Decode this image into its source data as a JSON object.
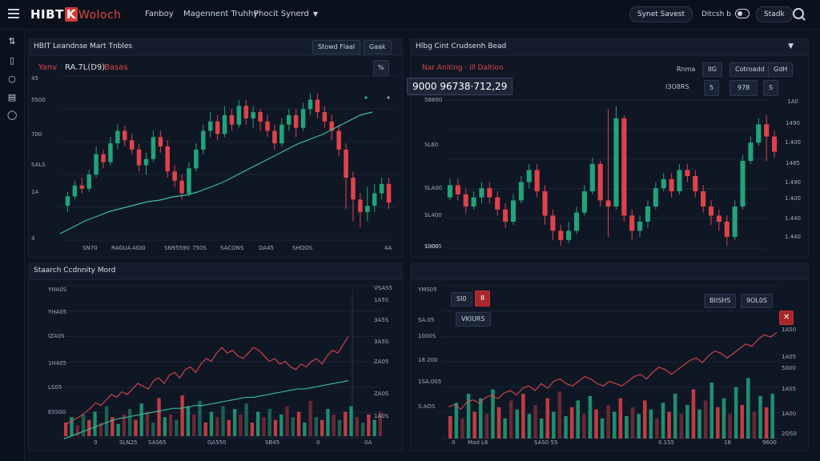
{
  "header": {
    "logo_main": "HIBT",
    "logo_x": "K",
    "logo_rest": "Woloch",
    "nav": [
      {
        "label": "Fanboy",
        "chevron": false
      },
      {
        "label": "Magennent Truhhy",
        "chevron": false
      },
      {
        "label": "Phocit Synerd",
        "chevron": true
      }
    ],
    "pill_primary": "Synet Savest",
    "secondary_label": "Ditcsh b",
    "toggle_label": "",
    "pill_secondary": "Stadk"
  },
  "sidebar": {
    "icons": [
      "swap-icon",
      "mobile-icon",
      "circle-icon",
      "card-icon",
      "ring-icon"
    ]
  },
  "panel_tl": {
    "title": "HBIT Leandnse Mart Tnbles",
    "btn_a": "Stowd Flaal",
    "btn_b": "Gaak",
    "stats_red_a": "Yanv",
    "stats_mid": "RA.7L(D9)",
    "stats_red_b": "Basas",
    "percent_btn": "%",
    "y_labels": [
      "45",
      "5S00",
      "700",
      "SALS",
      "1A",
      "4"
    ],
    "x_labels": [
      "SN70",
      "RAGUA",
      "AGI0",
      "SN95590",
      "750S",
      "SACONS",
      "DA45",
      "SHOOS",
      "4A"
    ]
  },
  "panel_tr": {
    "title": "Hlbg Cint Crudsenh Bead",
    "chevron": "chevron-down-icon",
    "red_label": "Nar Aniting · ill Daltion",
    "price": "9000 96738·712,29",
    "row1": [
      "Rnma",
      "IIG",
      "Cotroadd",
      "GdH"
    ],
    "row2_label": "I3O8RS",
    "row2_btns": [
      "5",
      "978",
      "S"
    ],
    "y_left": [
      "58800",
      "SL60",
      "SLA00",
      "SL400",
      "SL005",
      "1900"
    ],
    "y_right": [
      "1A0",
      "1490",
      "1.400",
      "1485",
      "1.490",
      "1.400",
      "1.440",
      "1.440"
    ]
  },
  "panel_bl": {
    "title": "Staarch Ccdnnity Mord",
    "y_left": [
      "YHA0S",
      "YHA05",
      "IZA0S",
      "1H405",
      "LS05",
      "ESS00"
    ],
    "y_right": [
      "VSAS5",
      "1A5S",
      "3A5S",
      "3A5S",
      "ZA05",
      "ZA0S",
      "1A0S"
    ],
    "x_labels": [
      "0",
      "SLN25",
      "SAS65",
      "GA550",
      "SB45",
      "0",
      "0A"
    ]
  },
  "panel_br": {
    "btn_a": "SI0",
    "btn_red": "8",
    "btn_list": "VKIURS",
    "btn_b": "BIISHS",
    "btn_c": "9OL0S",
    "close_btn": "close-icon",
    "y_left": [
      "YMS05",
      "SA.05",
      "1000S",
      "18.200",
      "1SA.005",
      "S.AOS"
    ],
    "y_right": [
      "1A50",
      "1A05",
      "5000",
      "1AS5",
      "1A00",
      "2OS0"
    ],
    "x_labels": [
      "0",
      "Mad L6",
      "SAS0 55",
      "0.1S5",
      "16",
      "9600"
    ]
  },
  "colors": {
    "up": "#22a37a",
    "down": "#e0424a",
    "line": "#3fbf98",
    "bg": "#0d1421"
  },
  "chart_data": [
    {
      "type": "candlestick",
      "name": "top-left",
      "ylim": [
        0,
        100
      ],
      "candles": [
        [
          22,
          28,
          18,
          31
        ],
        [
          28,
          35,
          26,
          38
        ],
        [
          35,
          33,
          30,
          40
        ],
        [
          33,
          42,
          31,
          45
        ],
        [
          42,
          55,
          40,
          60
        ],
        [
          55,
          50,
          46,
          58
        ],
        [
          50,
          62,
          48,
          66
        ],
        [
          62,
          70,
          58,
          74
        ],
        [
          70,
          64,
          60,
          73
        ],
        [
          64,
          58,
          55,
          68
        ],
        [
          58,
          48,
          44,
          62
        ],
        [
          48,
          52,
          42,
          56
        ],
        [
          52,
          66,
          50,
          70
        ],
        [
          66,
          60,
          56,
          70
        ],
        [
          60,
          44,
          40,
          64
        ],
        [
          44,
          38,
          34,
          48
        ],
        [
          38,
          30,
          26,
          42
        ],
        [
          30,
          46,
          28,
          50
        ],
        [
          46,
          58,
          44,
          62
        ],
        [
          58,
          70,
          55,
          74
        ],
        [
          70,
          76,
          66,
          82
        ],
        [
          76,
          68,
          64,
          80
        ],
        [
          68,
          80,
          66,
          86
        ],
        [
          80,
          74,
          70,
          84
        ],
        [
          74,
          86,
          72,
          90
        ],
        [
          86,
          78,
          74,
          90
        ],
        [
          78,
          82,
          72,
          86
        ],
        [
          82,
          76,
          70,
          84
        ],
        [
          76,
          70,
          66,
          80
        ],
        [
          70,
          62,
          58,
          74
        ],
        [
          62,
          74,
          60,
          78
        ],
        [
          74,
          80,
          70,
          84
        ],
        [
          80,
          72,
          66,
          84
        ],
        [
          72,
          84,
          70,
          88
        ],
        [
          84,
          90,
          80,
          94
        ],
        [
          90,
          82,
          78,
          94
        ],
        [
          82,
          76,
          72,
          86
        ],
        [
          76,
          70,
          64,
          80
        ],
        [
          70,
          58,
          54,
          74
        ],
        [
          58,
          40,
          20,
          62
        ],
        [
          40,
          26,
          12,
          44
        ],
        [
          26,
          18,
          8,
          30
        ],
        [
          18,
          22,
          12,
          34
        ],
        [
          22,
          30,
          18,
          36
        ],
        [
          30,
          36,
          26,
          40
        ],
        [
          36,
          24,
          20,
          40
        ]
      ],
      "trend": [
        4,
        8,
        12,
        15,
        18,
        20,
        22,
        24,
        25,
        27,
        28,
        30,
        33,
        36,
        40,
        44,
        48,
        52,
        56,
        60,
        63,
        66,
        70,
        74,
        78,
        80
      ]
    },
    {
      "type": "candlestick",
      "name": "top-right",
      "ylim": [
        0,
        100
      ],
      "candles": [
        [
          36,
          44,
          34,
          48
        ],
        [
          44,
          38,
          34,
          48
        ],
        [
          38,
          30,
          26,
          42
        ],
        [
          30,
          36,
          28,
          40
        ],
        [
          36,
          42,
          32,
          46
        ],
        [
          42,
          36,
          32,
          46
        ],
        [
          36,
          28,
          24,
          40
        ],
        [
          28,
          20,
          16,
          32
        ],
        [
          20,
          34,
          18,
          38
        ],
        [
          34,
          46,
          32,
          50
        ],
        [
          46,
          54,
          42,
          58
        ],
        [
          54,
          40,
          36,
          58
        ],
        [
          40,
          24,
          18,
          44
        ],
        [
          24,
          14,
          8,
          28
        ],
        [
          14,
          8,
          4,
          18
        ],
        [
          8,
          14,
          6,
          20
        ],
        [
          14,
          26,
          12,
          30
        ],
        [
          26,
          40,
          24,
          44
        ],
        [
          40,
          58,
          38,
          62
        ],
        [
          58,
          34,
          30,
          60
        ],
        [
          34,
          30,
          10,
          94
        ],
        [
          30,
          88,
          28,
          96
        ],
        [
          88,
          24,
          20,
          90
        ],
        [
          24,
          14,
          8,
          28
        ],
        [
          14,
          20,
          10,
          24
        ],
        [
          20,
          30,
          16,
          34
        ],
        [
          30,
          42,
          28,
          46
        ],
        [
          42,
          48,
          40,
          52
        ],
        [
          48,
          40,
          36,
          52
        ],
        [
          40,
          54,
          38,
          58
        ],
        [
          54,
          50,
          46,
          58
        ],
        [
          50,
          40,
          36,
          54
        ],
        [
          40,
          30,
          26,
          44
        ],
        [
          30,
          24,
          18,
          34
        ],
        [
          24,
          20,
          14,
          28
        ],
        [
          20,
          10,
          4,
          24
        ],
        [
          10,
          30,
          8,
          34
        ],
        [
          30,
          60,
          28,
          64
        ],
        [
          60,
          72,
          58,
          76
        ],
        [
          72,
          84,
          70,
          88
        ],
        [
          84,
          76,
          60,
          90
        ],
        [
          76,
          66,
          62,
          80
        ]
      ]
    },
    {
      "type": "line",
      "name": "bottom-left",
      "ylim": [
        0,
        100
      ],
      "series": [
        {
          "role": "price",
          "values": [
            18,
            20,
            22,
            24,
            27,
            30,
            34,
            32,
            36,
            40,
            38,
            42,
            40,
            44,
            48,
            46,
            44,
            50,
            52,
            48,
            54,
            56,
            52,
            58,
            60,
            56,
            62,
            66,
            64,
            70,
            74,
            70,
            72,
            68,
            66,
            70,
            74,
            72,
            68,
            64,
            66,
            62,
            64,
            60,
            58,
            62,
            60,
            64,
            66,
            62,
            68,
            72,
            70,
            76,
            82
          ]
        },
        {
          "role": "avg",
          "values": [
            8,
            10,
            12,
            14,
            16,
            18,
            20,
            22,
            23,
            24,
            25,
            26,
            27,
            28,
            29,
            30,
            30,
            31,
            32,
            32,
            33,
            34,
            35,
            36,
            37,
            38,
            38,
            39,
            40,
            41,
            42,
            43,
            44,
            44,
            45,
            46,
            47,
            48,
            49,
            50
          ]
        },
        {
          "role": "volume",
          "values": [
            10,
            14,
            8,
            16,
            12,
            18,
            10,
            22,
            14,
            9,
            16,
            20,
            12,
            24,
            18,
            10,
            28,
            14,
            16,
            12,
            30,
            22,
            16,
            26,
            10,
            18,
            14,
            22,
            12,
            20,
            16,
            24,
            10,
            18,
            14,
            20,
            12,
            16,
            22,
            14,
            18,
            10,
            26,
            14,
            12,
            20,
            16,
            12,
            18,
            22,
            14,
            10,
            16,
            12,
            18
          ]
        }
      ]
    },
    {
      "type": "line",
      "name": "bottom-right",
      "ylim": [
        0,
        100
      ],
      "series": [
        {
          "role": "price",
          "values": [
            30,
            32,
            28,
            34,
            36,
            33,
            38,
            40,
            37,
            42,
            44,
            40,
            46,
            48,
            44,
            50,
            46,
            52,
            54,
            50,
            48,
            52,
            56,
            54,
            50,
            48,
            52,
            50,
            48,
            52,
            56,
            58,
            54,
            60,
            64,
            62,
            58,
            62,
            66,
            70,
            72,
            68,
            74,
            78,
            76,
            72,
            76,
            80,
            84,
            82,
            88,
            92,
            90,
            94
          ]
        },
        {
          "role": "volume",
          "values": [
            20,
            32,
            18,
            40,
            24,
            36,
            22,
            44,
            28,
            18,
            34,
            26,
            40,
            22,
            30,
            18,
            36,
            24,
            42,
            20,
            28,
            34,
            22,
            38,
            26,
            18,
            30,
            24,
            36,
            20,
            28,
            22,
            34,
            26,
            18,
            32,
            24,
            40,
            22,
            30,
            44,
            26,
            34,
            50,
            28,
            36,
            22,
            46,
            30,
            54,
            24,
            38,
            28,
            40
          ]
        }
      ]
    }
  ]
}
